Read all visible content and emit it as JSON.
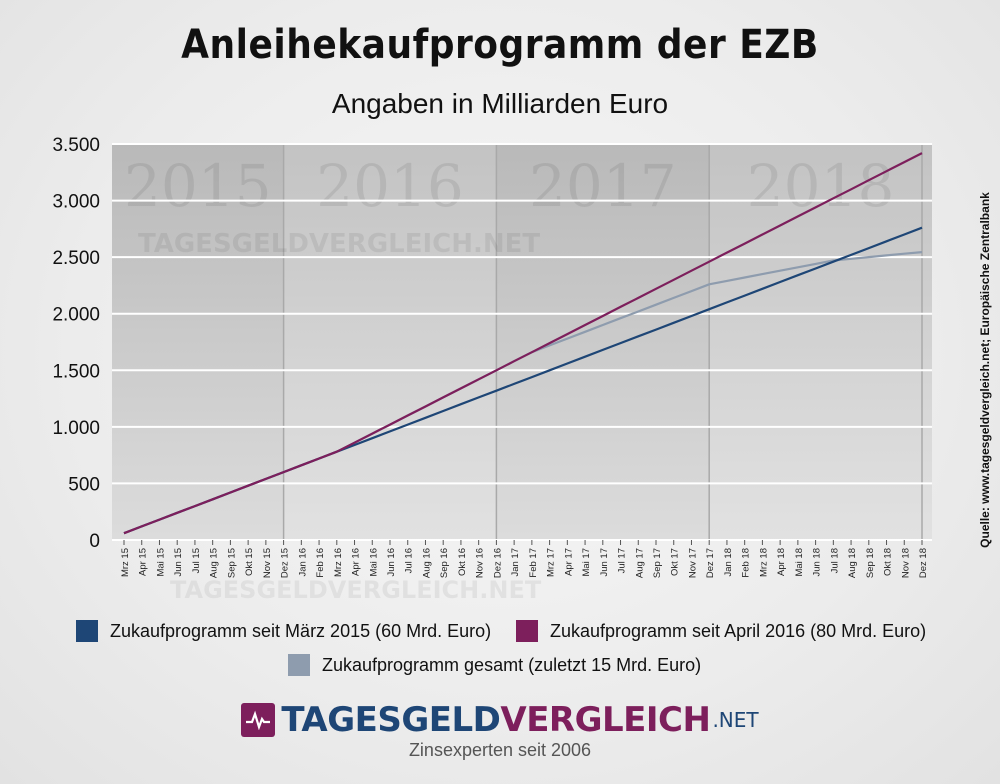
{
  "title": "Anleihekaufprogramm der EZB",
  "subtitle": "Angaben in Milliarden Euro",
  "source": "Quelle: www.tagesgeldvergleich.net; Europäische Zentralbank",
  "brand": {
    "name_part1": "TAGESGELD",
    "name_part2": "VERGLEICH",
    "tld": ".NET",
    "tagline": "Zinsexperten seit 2006"
  },
  "watermark": "TAGESGELDVERGLEICH.NET",
  "colors": {
    "series1": "#1e4676",
    "series2": "#7d1f5c",
    "series3": "#8e9cae",
    "brand_blue": "#1e4676",
    "brand_purple": "#7d1f5c"
  },
  "chart_data": {
    "type": "line",
    "title": "Anleihekaufprogramm der EZB",
    "subtitle": "Angaben in Milliarden Euro",
    "xlabel": "",
    "ylabel": "",
    "ylim": [
      0,
      3500
    ],
    "yticks": [
      0,
      500,
      1000,
      1500,
      2000,
      2500,
      3000,
      3500
    ],
    "ytick_labels": [
      "0",
      "500",
      "1.000",
      "1.500",
      "2.000",
      "2.500",
      "3.000",
      "3.500"
    ],
    "grid": true,
    "categories": [
      "Mrz 15",
      "Apr 15",
      "Mai 15",
      "Jun 15",
      "Jul 15",
      "Aug 15",
      "Sep 15",
      "Okt 15",
      "Nov 15",
      "Dez 15",
      "Jan 16",
      "Feb 16",
      "Mrz 16",
      "Apr 16",
      "Mai 16",
      "Jun 16",
      "Jul 16",
      "Aug 16",
      "Sep 16",
      "Okt 16",
      "Nov 16",
      "Dez 16",
      "Jan 17",
      "Feb 17",
      "Mrz 17",
      "Apr 17",
      "Mai 17",
      "Jun 17",
      "Jul 17",
      "Aug 17",
      "Sep 17",
      "Okt 17",
      "Nov 17",
      "Dez 17",
      "Jan 18",
      "Feb 18",
      "Mrz 18",
      "Apr 18",
      "Mai 18",
      "Jun 18",
      "Jul 18",
      "Aug 18",
      "Sep 18",
      "Okt 18",
      "Nov 18",
      "Dez 18"
    ],
    "year_bands": [
      {
        "label": "2015",
        "start": 0,
        "end": 9
      },
      {
        "label": "2016",
        "start": 9,
        "end": 21
      },
      {
        "label": "2017",
        "start": 21,
        "end": 33
      },
      {
        "label": "2018",
        "start": 33,
        "end": 45
      }
    ],
    "series": [
      {
        "name": "Zukaufprogramm seit März 2015 (60 Mrd. Euro)",
        "color": "#1e4676",
        "values": [
          60,
          120,
          180,
          240,
          300,
          360,
          420,
          480,
          540,
          600,
          660,
          720,
          780,
          840,
          900,
          960,
          1020,
          1080,
          1140,
          1200,
          1260,
          1320,
          1380,
          1440,
          1500,
          1560,
          1620,
          1680,
          1740,
          1800,
          1860,
          1920,
          1980,
          2040,
          2100,
          2160,
          2220,
          2280,
          2340,
          2400,
          2460,
          2520,
          2580,
          2640,
          2700,
          2760
        ]
      },
      {
        "name": "Zukaufprogramm seit April 2016 (80 Mrd. Euro)",
        "color": "#7d1f5c",
        "values": [
          60,
          120,
          180,
          240,
          300,
          360,
          420,
          480,
          540,
          600,
          660,
          720,
          780,
          860,
          940,
          1020,
          1100,
          1180,
          1260,
          1340,
          1420,
          1500,
          1580,
          1660,
          1740,
          1820,
          1900,
          1980,
          2060,
          2140,
          2220,
          2300,
          2380,
          2460,
          2540,
          2620,
          2700,
          2780,
          2860,
          2940,
          3020,
          3100,
          3180,
          3260,
          3340,
          3420
        ]
      },
      {
        "name": "Zukaufprogramm gesamt (zuletzt 15 Mrd. Euro)",
        "color": "#8e9cae",
        "values": [
          60,
          120,
          180,
          240,
          300,
          360,
          420,
          480,
          540,
          600,
          660,
          720,
          780,
          860,
          940,
          1020,
          1100,
          1180,
          1260,
          1340,
          1420,
          1500,
          1580,
          1660,
          1720,
          1780,
          1840,
          1900,
          1960,
          2020,
          2080,
          2140,
          2200,
          2260,
          2290,
          2320,
          2350,
          2380,
          2410,
          2440,
          2470,
          2485,
          2500,
          2515,
          2530,
          2545
        ]
      }
    ]
  }
}
